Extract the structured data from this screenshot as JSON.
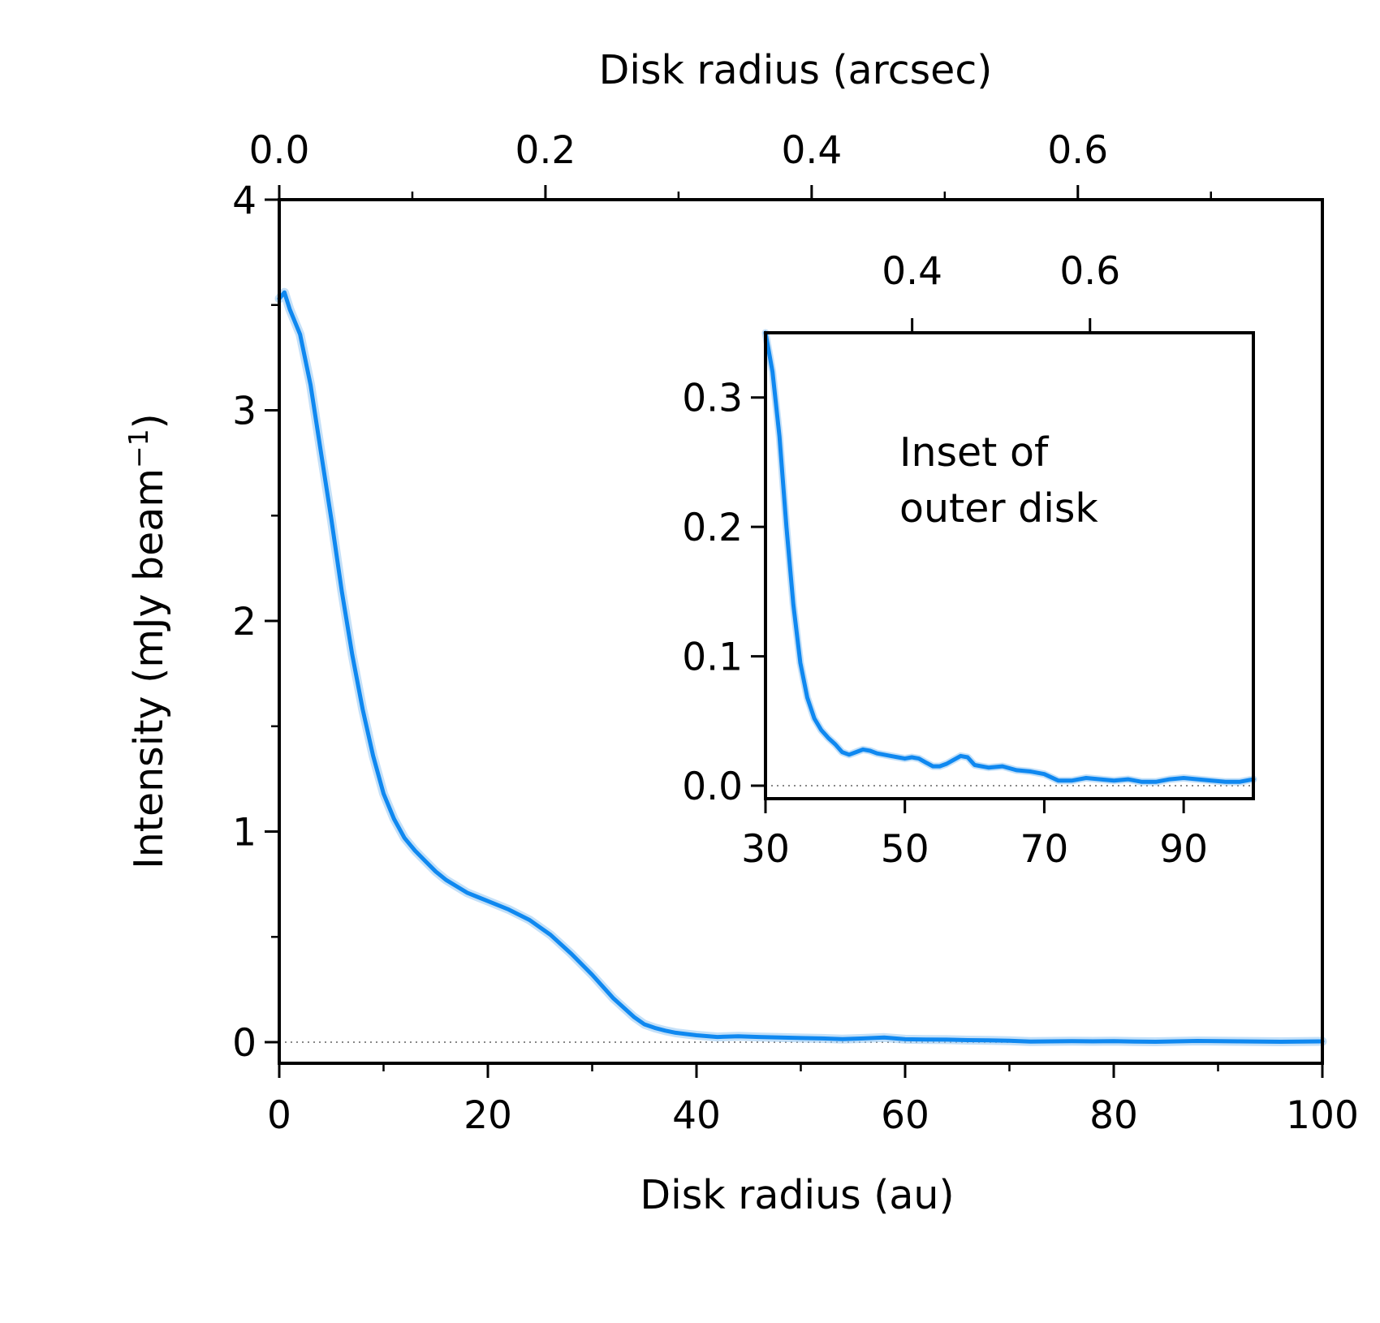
{
  "chart_data": [
    {
      "id": "main",
      "type": "line",
      "xlabel": "Disk radius (au)",
      "ylabel": "Intensity (mJy beam",
      "ylabel_sup": "−1",
      "ylabel_close": ")",
      "x2label": "Disk radius (arcsec)",
      "xlim": [
        0,
        100
      ],
      "ylim": [
        -0.1,
        4
      ],
      "x2lim": [
        0,
        0.7837
      ],
      "xticks": [
        "0",
        "20",
        "40",
        "60",
        "80",
        "100"
      ],
      "yticks": [
        "0",
        "1",
        "2",
        "3",
        "4"
      ],
      "x2ticks": [
        "0.0",
        "0.2",
        "0.4",
        "0.6"
      ],
      "grid": false,
      "zero_line": true,
      "series": [
        {
          "color": "#0f88f0",
          "band_color": "#9ccbf3",
          "x": [
            0,
            0.5,
            1,
            2,
            3,
            4,
            5,
            6,
            7,
            8,
            9,
            10,
            11,
            12,
            13,
            14,
            15,
            16,
            17,
            18,
            19,
            20,
            22,
            24,
            26,
            28,
            30,
            32,
            34,
            35,
            36,
            37,
            38,
            40,
            42,
            44,
            46,
            48,
            50,
            52,
            54,
            56,
            58,
            60,
            62,
            64,
            66,
            68,
            70,
            72,
            74,
            76,
            78,
            80,
            82,
            84,
            86,
            88,
            90,
            92,
            94,
            96,
            98,
            100
          ],
          "y": [
            3.53,
            3.56,
            3.48,
            3.36,
            3.12,
            2.8,
            2.48,
            2.14,
            1.84,
            1.58,
            1.36,
            1.18,
            1.06,
            0.97,
            0.91,
            0.86,
            0.81,
            0.77,
            0.74,
            0.71,
            0.69,
            0.67,
            0.63,
            0.58,
            0.51,
            0.42,
            0.32,
            0.21,
            0.12,
            0.085,
            0.068,
            0.055,
            0.045,
            0.033,
            0.025,
            0.028,
            0.025,
            0.022,
            0.02,
            0.018,
            0.015,
            0.018,
            0.022,
            0.014,
            0.013,
            0.012,
            0.01,
            0.009,
            0.007,
            0.003,
            0.004,
            0.005,
            0.004,
            0.005,
            0.003,
            0.002,
            0.004,
            0.006,
            0.005,
            0.004,
            0.003,
            0.002,
            0.003,
            0.004
          ]
        }
      ]
    },
    {
      "id": "inset",
      "type": "line",
      "xlim": [
        30,
        100
      ],
      "ylim": [
        -0.01,
        0.35
      ],
      "x2lim": [
        0.2351,
        0.7837
      ],
      "xticks": [
        "30",
        "50",
        "70",
        "90"
      ],
      "yticks": [
        "0.0",
        "0.1",
        "0.2",
        "0.3"
      ],
      "x2ticks": [
        "0.4",
        "0.6"
      ],
      "annotation_line1": "Inset of",
      "annotation_line2": "outer disk",
      "zero_line": true,
      "series": [
        {
          "color": "#0f88f0",
          "band_color": "#9ccbf3",
          "x": [
            30,
            31,
            32,
            33,
            34,
            35,
            36,
            37,
            38,
            39,
            40,
            41,
            42,
            43,
            44,
            45,
            46,
            47,
            48,
            49,
            50,
            51,
            52,
            53,
            54,
            55,
            56,
            57,
            58,
            59,
            60,
            62,
            64,
            66,
            68,
            70,
            72,
            74,
            76,
            78,
            80,
            82,
            84,
            86,
            88,
            90,
            92,
            94,
            96,
            98,
            100
          ],
          "y": [
            0.35,
            0.32,
            0.27,
            0.2,
            0.14,
            0.095,
            0.068,
            0.052,
            0.043,
            0.037,
            0.032,
            0.026,
            0.024,
            0.026,
            0.028,
            0.027,
            0.025,
            0.024,
            0.023,
            0.022,
            0.021,
            0.022,
            0.021,
            0.018,
            0.015,
            0.015,
            0.017,
            0.02,
            0.023,
            0.022,
            0.016,
            0.014,
            0.015,
            0.012,
            0.011,
            0.009,
            0.004,
            0.004,
            0.006,
            0.005,
            0.004,
            0.005,
            0.003,
            0.003,
            0.005,
            0.006,
            0.005,
            0.004,
            0.003,
            0.003,
            0.005
          ]
        }
      ]
    }
  ]
}
